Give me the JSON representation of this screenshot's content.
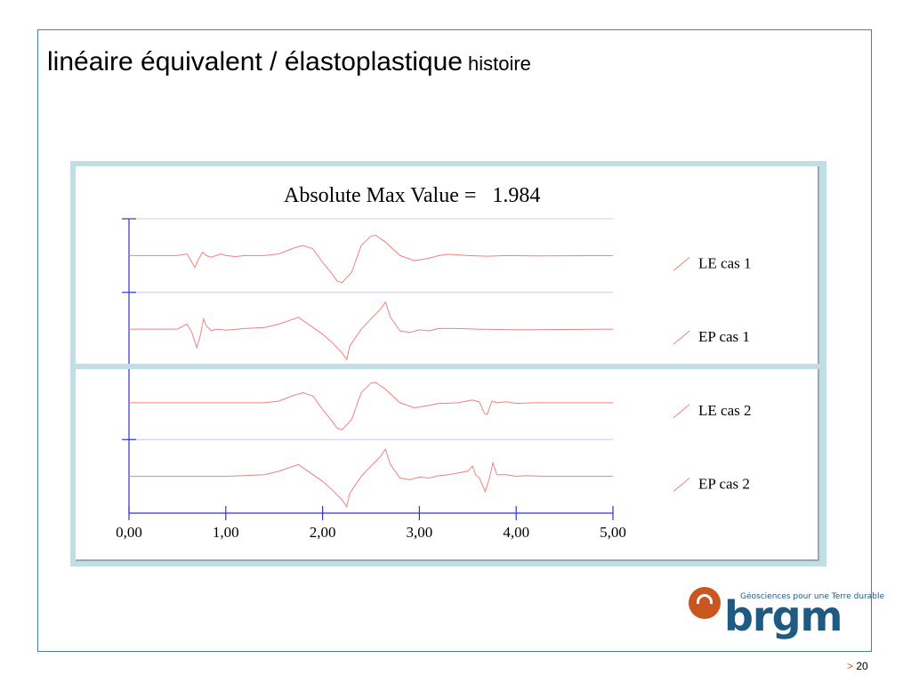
{
  "slide": {
    "title_main": "linéaire équivalent / élastoplastique",
    "title_sub": "histoire",
    "page_prefix": ">",
    "page_number": "20"
  },
  "logo": {
    "word": "brgm",
    "tagline": "Géosciences pour une Terre durable"
  },
  "colors": {
    "frame": "#4f7fa8",
    "chart_border": "#bfdfe4",
    "trace": "#f08080",
    "axis": "#3333cc",
    "grid": "#ccccee",
    "logo_blue": "#1f5a82",
    "logo_orange": "#c8561e"
  },
  "chart_data": {
    "type": "line",
    "title": "Absolute Max Value =   1.984",
    "x_ticks": [
      "0,00",
      "1,00",
      "2,00",
      "3,00",
      "4,00",
      "5,00"
    ],
    "xlim": [
      0,
      5
    ],
    "series": [
      {
        "name": "LE cas 1",
        "points": [
          [
            0,
            0
          ],
          [
            0.5,
            0
          ],
          [
            0.6,
            0.05
          ],
          [
            0.65,
            -0.2
          ],
          [
            0.68,
            -0.35
          ],
          [
            0.72,
            -0.1
          ],
          [
            0.76,
            0.1
          ],
          [
            0.8,
            0
          ],
          [
            0.85,
            -0.05
          ],
          [
            0.9,
            0
          ],
          [
            0.95,
            0.05
          ],
          [
            1.0,
            0
          ],
          [
            1.1,
            -0.03
          ],
          [
            1.2,
            0
          ],
          [
            1.4,
            0
          ],
          [
            1.55,
            0.05
          ],
          [
            1.7,
            0.22
          ],
          [
            1.8,
            0.3
          ],
          [
            1.9,
            0.2
          ],
          [
            2.0,
            -0.2
          ],
          [
            2.1,
            -0.55
          ],
          [
            2.15,
            -0.75
          ],
          [
            2.2,
            -0.8
          ],
          [
            2.3,
            -0.5
          ],
          [
            2.4,
            0.3
          ],
          [
            2.5,
            0.58
          ],
          [
            2.55,
            0.6
          ],
          [
            2.65,
            0.4
          ],
          [
            2.8,
            0
          ],
          [
            2.95,
            -0.15
          ],
          [
            3.1,
            -0.08
          ],
          [
            3.2,
            0
          ],
          [
            3.3,
            0.04
          ],
          [
            3.5,
            0
          ],
          [
            3.7,
            -0.02
          ],
          [
            3.9,
            0
          ],
          [
            4.2,
            -0.01
          ],
          [
            5.0,
            0
          ]
        ]
      },
      {
        "name": "EP cas 1",
        "points": [
          [
            0,
            0
          ],
          [
            0.5,
            0
          ],
          [
            0.6,
            0.15
          ],
          [
            0.65,
            -0.1
          ],
          [
            0.7,
            -0.55
          ],
          [
            0.74,
            -0.15
          ],
          [
            0.77,
            0.3
          ],
          [
            0.8,
            0.1
          ],
          [
            0.85,
            -0.05
          ],
          [
            0.9,
            0
          ],
          [
            1.0,
            -0.03
          ],
          [
            1.2,
            0.02
          ],
          [
            1.4,
            0.05
          ],
          [
            1.55,
            0.15
          ],
          [
            1.7,
            0.3
          ],
          [
            1.75,
            0.35
          ],
          [
            1.9,
            0.05
          ],
          [
            2.0,
            -0.15
          ],
          [
            2.1,
            -0.4
          ],
          [
            2.2,
            -0.7
          ],
          [
            2.25,
            -0.9
          ],
          [
            2.28,
            -0.5
          ],
          [
            2.4,
            0
          ],
          [
            2.5,
            0.3
          ],
          [
            2.6,
            0.6
          ],
          [
            2.65,
            0.8
          ],
          [
            2.7,
            0.35
          ],
          [
            2.8,
            -0.05
          ],
          [
            2.9,
            -0.1
          ],
          [
            3.0,
            -0.02
          ],
          [
            3.1,
            -0.05
          ],
          [
            3.2,
            0.02
          ],
          [
            3.4,
            0.02
          ],
          [
            3.6,
            0
          ],
          [
            4.0,
            -0.02
          ],
          [
            5.0,
            0
          ]
        ]
      },
      {
        "name": "LE cas 2",
        "points": [
          [
            0,
            0
          ],
          [
            1.0,
            0
          ],
          [
            1.4,
            0
          ],
          [
            1.55,
            0.05
          ],
          [
            1.7,
            0.22
          ],
          [
            1.8,
            0.3
          ],
          [
            1.9,
            0.2
          ],
          [
            2.0,
            -0.2
          ],
          [
            2.1,
            -0.55
          ],
          [
            2.15,
            -0.75
          ],
          [
            2.2,
            -0.8
          ],
          [
            2.3,
            -0.5
          ],
          [
            2.4,
            0.3
          ],
          [
            2.5,
            0.58
          ],
          [
            2.55,
            0.6
          ],
          [
            2.65,
            0.4
          ],
          [
            2.8,
            0
          ],
          [
            2.95,
            -0.15
          ],
          [
            3.1,
            -0.08
          ],
          [
            3.2,
            -0.02
          ],
          [
            3.4,
            0
          ],
          [
            3.55,
            0.08
          ],
          [
            3.62,
            0.02
          ],
          [
            3.67,
            -0.3
          ],
          [
            3.7,
            -0.35
          ],
          [
            3.75,
            0.05
          ],
          [
            3.8,
            0
          ],
          [
            3.9,
            0.03
          ],
          [
            4.0,
            -0.02
          ],
          [
            4.2,
            0
          ],
          [
            5.0,
            0
          ]
        ]
      },
      {
        "name": "EP cas 2",
        "points": [
          [
            0,
            0
          ],
          [
            1.0,
            0
          ],
          [
            1.4,
            0.05
          ],
          [
            1.55,
            0.15
          ],
          [
            1.7,
            0.3
          ],
          [
            1.75,
            0.35
          ],
          [
            1.9,
            0.05
          ],
          [
            2.0,
            -0.15
          ],
          [
            2.1,
            -0.4
          ],
          [
            2.2,
            -0.7
          ],
          [
            2.25,
            -0.9
          ],
          [
            2.28,
            -0.5
          ],
          [
            2.4,
            0
          ],
          [
            2.5,
            0.3
          ],
          [
            2.6,
            0.6
          ],
          [
            2.65,
            0.8
          ],
          [
            2.7,
            0.35
          ],
          [
            2.8,
            -0.05
          ],
          [
            2.9,
            -0.1
          ],
          [
            3.0,
            -0.02
          ],
          [
            3.1,
            -0.05
          ],
          [
            3.2,
            0.02
          ],
          [
            3.3,
            0.05
          ],
          [
            3.5,
            0.15
          ],
          [
            3.55,
            0.3
          ],
          [
            3.58,
            0.05
          ],
          [
            3.62,
            -0.05
          ],
          [
            3.68,
            -0.45
          ],
          [
            3.72,
            -0.1
          ],
          [
            3.76,
            0.4
          ],
          [
            3.8,
            0.05
          ],
          [
            3.9,
            0.05
          ],
          [
            4.0,
            0
          ],
          [
            4.1,
            0.02
          ],
          [
            4.3,
            0
          ],
          [
            5.0,
            0
          ]
        ]
      }
    ]
  }
}
